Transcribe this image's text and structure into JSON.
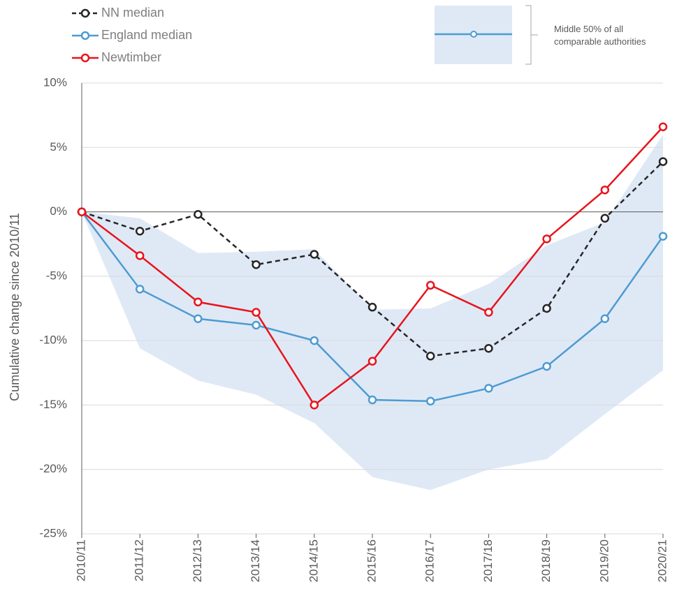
{
  "chart_data": {
    "type": "line",
    "y_label": "Cumulative change since 2010/11",
    "categories": [
      "2010/11",
      "2011/12",
      "2012/13",
      "2013/14",
      "2014/15",
      "2015/16",
      "2016/17",
      "2017/18",
      "2018/19",
      "2019/20",
      "2020/21"
    ],
    "series": [
      {
        "name": "NN median",
        "color": "#262626",
        "dashed": true,
        "values": [
          0,
          -1.5,
          -0.2,
          -4.1,
          -3.3,
          -7.4,
          -11.2,
          -10.6,
          -7.5,
          -0.5,
          3.9
        ]
      },
      {
        "name": "England median",
        "color": "#4d9bd2",
        "values": [
          0,
          -6.0,
          -8.3,
          -8.8,
          -10.0,
          -14.6,
          -14.7,
          -13.7,
          -12.0,
          -8.3,
          -1.9
        ]
      },
      {
        "name": "Newtimber",
        "color": "#e8141c",
        "values": [
          0,
          -3.4,
          -7.0,
          -7.8,
          -15.0,
          -11.6,
          -5.7,
          -7.8,
          -2.1,
          1.7,
          6.6
        ]
      }
    ],
    "band": {
      "name": "Middle 50% of all comparable authorities",
      "color": "#dfe9f6",
      "upper": [
        0,
        -0.5,
        -3.2,
        -3.1,
        -2.9,
        -7.6,
        -7.5,
        -5.6,
        -2.6,
        -0.8,
        6.0
      ],
      "lower": [
        0,
        -10.6,
        -13.1,
        -14.2,
        -16.4,
        -20.6,
        -21.6,
        -20.0,
        -19.2,
        -15.7,
        -12.3
      ]
    },
    "ylim": [
      -25,
      10
    ],
    "yticks": [
      {
        "value": -25,
        "label": "-25%"
      },
      {
        "value": -20,
        "label": "-20%"
      },
      {
        "value": -15,
        "label": "-15%"
      },
      {
        "value": -10,
        "label": "-10%"
      },
      {
        "value": -5,
        "label": "-5%"
      },
      {
        "value": 0,
        "label": "0%"
      },
      {
        "value": 5,
        "label": "5%"
      },
      {
        "value": 10,
        "label": "10%"
      }
    ],
    "grid": true
  }
}
